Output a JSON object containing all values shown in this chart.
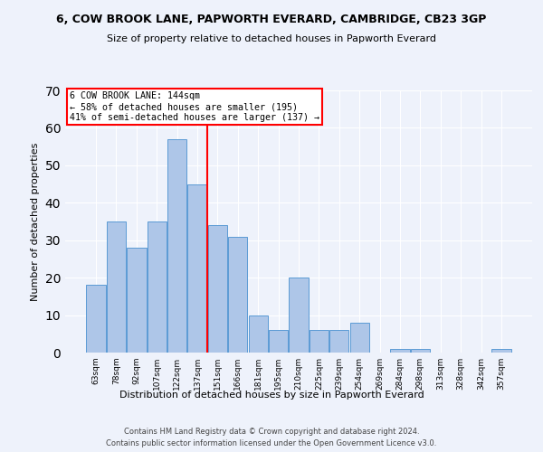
{
  "title": "6, COW BROOK LANE, PAPWORTH EVERARD, CAMBRIDGE, CB23 3GP",
  "subtitle": "Size of property relative to detached houses in Papworth Everard",
  "xlabel": "Distribution of detached houses by size in Papworth Everard",
  "ylabel": "Number of detached properties",
  "categories": [
    "63sqm",
    "78sqm",
    "92sqm",
    "107sqm",
    "122sqm",
    "137sqm",
    "151sqm",
    "166sqm",
    "181sqm",
    "195sqm",
    "210sqm",
    "225sqm",
    "239sqm",
    "254sqm",
    "269sqm",
    "284sqm",
    "298sqm",
    "313sqm",
    "328sqm",
    "342sqm",
    "357sqm"
  ],
  "values": [
    18,
    35,
    28,
    35,
    57,
    45,
    34,
    31,
    10,
    6,
    20,
    6,
    6,
    8,
    0,
    1,
    1,
    0,
    0,
    0,
    1
  ],
  "bar_color": "#aec6e8",
  "bar_edge_color": "#5b9bd5",
  "property_line_x": 5.5,
  "annotation_line1": "6 COW BROOK LANE: 144sqm",
  "annotation_line2": "← 58% of detached houses are smaller (195)",
  "annotation_line3": "41% of semi-detached houses are larger (137) →",
  "annotation_box_color": "white",
  "annotation_box_edge": "red",
  "vline_color": "red",
  "ylim": [
    0,
    70
  ],
  "background_color": "#eef2fb",
  "grid_color": "white",
  "footer1": "Contains HM Land Registry data © Crown copyright and database right 2024.",
  "footer2": "Contains public sector information licensed under the Open Government Licence v3.0."
}
